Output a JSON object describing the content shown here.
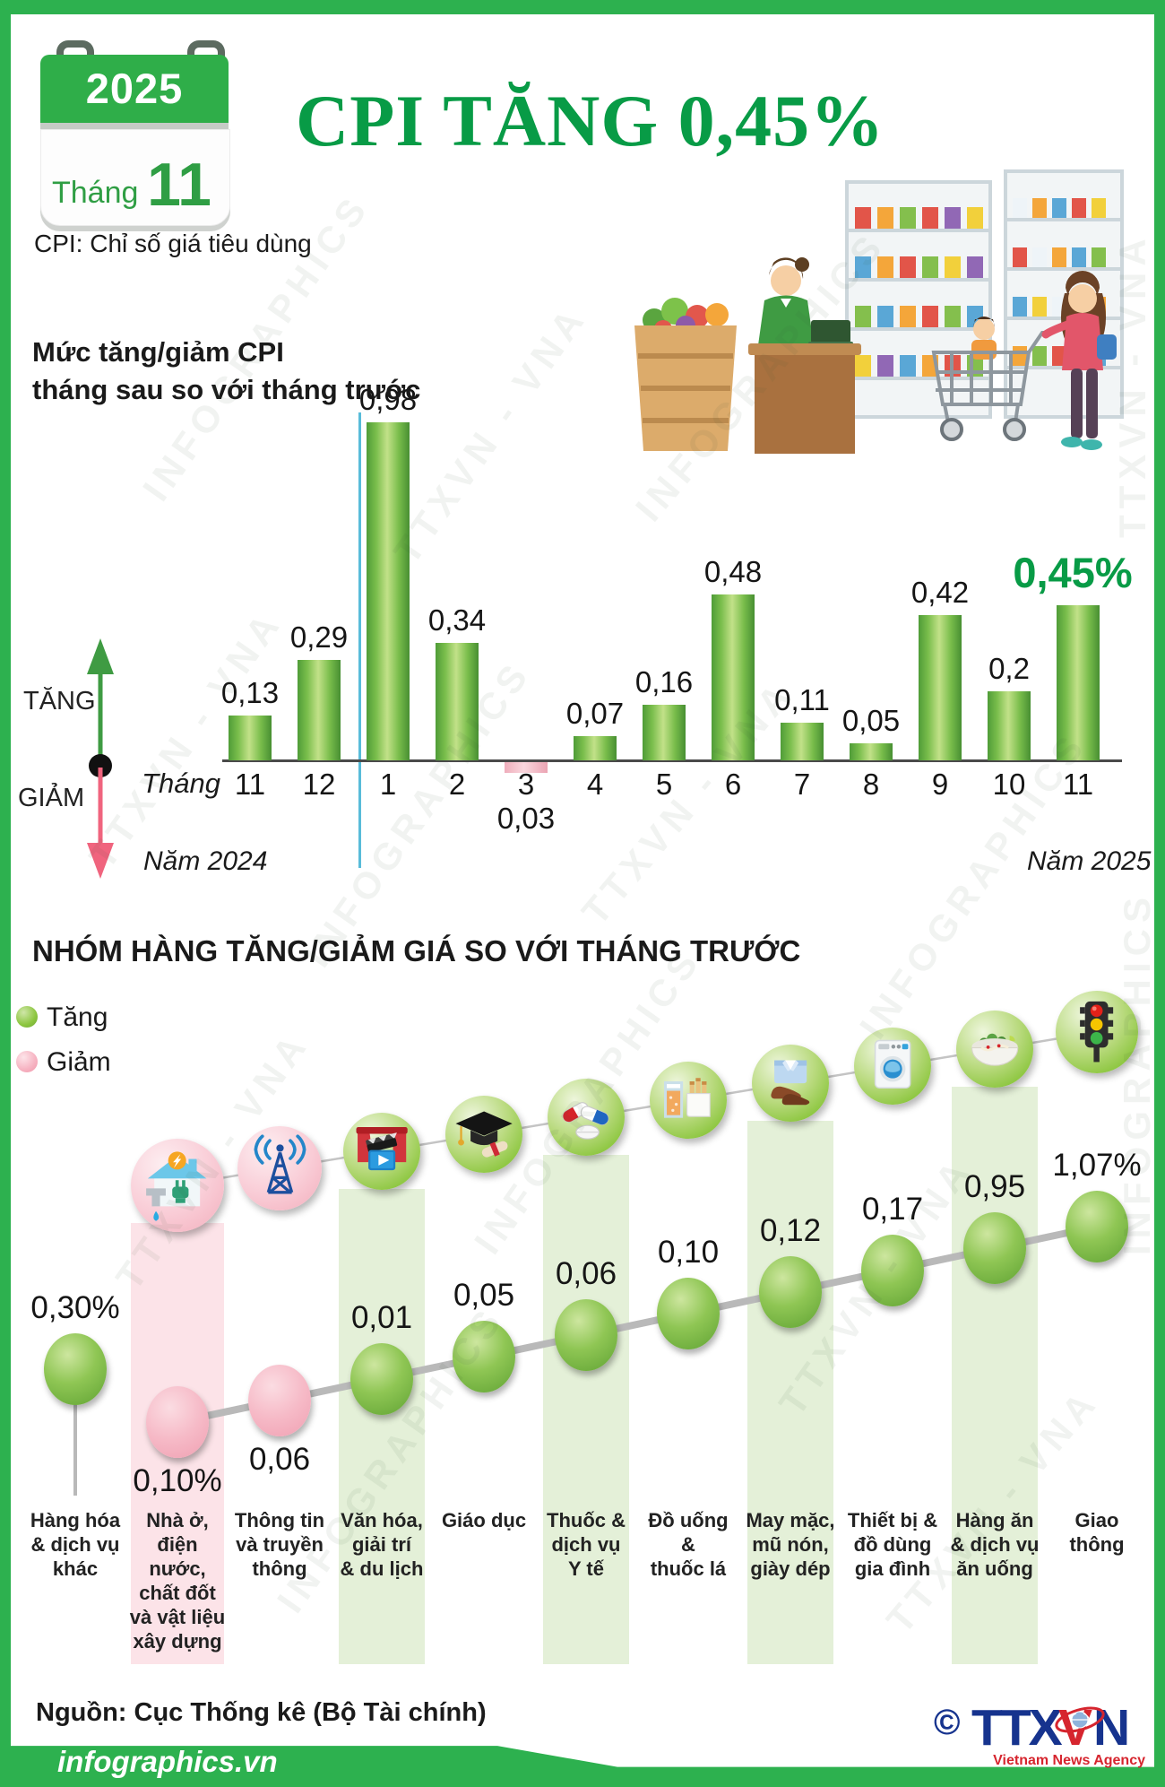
{
  "header": {
    "calendar": {
      "year": "2025",
      "month_label": "Tháng",
      "month": "11"
    },
    "title": "CPI TĂNG 0,45%",
    "subtitle": "CPI: Chỉ số giá tiêu dùng"
  },
  "chart1": {
    "title_lines": [
      "Mức tăng/giảm CPI",
      "tháng sau so với tháng trước"
    ],
    "axis_prefix": "Tháng",
    "up_label": "TĂNG",
    "down_label": "GIẢM",
    "year_left": "Năm 2024",
    "year_right": "Năm 2025"
  },
  "section2": {
    "title": "NHÓM HÀNG TĂNG/GIẢM GIÁ SO VỚI THÁNG TRƯỚC",
    "legend": [
      {
        "label": "Tăng"
      },
      {
        "label": "Giảm"
      }
    ]
  },
  "footer": {
    "source": "Nguồn: Cục Thống kê (Bộ Tài chính)",
    "brand": "infographics.vn",
    "copyright": "©",
    "agency_parts": [
      "TTX",
      "V",
      "N"
    ],
    "agency_sub": "Vietnam News Agency"
  },
  "watermarks": [
    "INFOGRAPHICS",
    "TTXVN - VNA"
  ],
  "colors": {
    "accent_green": "#089b46",
    "bar_up": "#6cb33f",
    "bar_down": "#f5b8c4",
    "bubble_up": "#76b043",
    "bubble_down": "#f4a7b9",
    "divider_blue": "#58bcd9"
  },
  "chart_data": [
    {
      "type": "bar",
      "title": "Mức tăng/giảm CPI tháng sau so với tháng trước (%)",
      "categories": [
        "11",
        "12",
        "1",
        "2",
        "3",
        "4",
        "5",
        "6",
        "7",
        "8",
        "9",
        "10",
        "11"
      ],
      "values": [
        0.13,
        0.29,
        0.98,
        0.34,
        -0.03,
        0.07,
        0.16,
        0.48,
        0.11,
        0.05,
        0.42,
        0.2,
        0.45
      ],
      "labels": [
        "0,13",
        "0,29",
        "0,98",
        "0,34",
        "0,03",
        "0,07",
        "0,16",
        "0,48",
        "0,11",
        "0,05",
        "0,42",
        "0,2",
        "0,45%"
      ],
      "xlabel": "Tháng",
      "ylabel": "",
      "ylim": [
        -0.1,
        1.1
      ],
      "grid": false,
      "year_groups": [
        {
          "label": "Năm 2024",
          "months": [
            "11",
            "12"
          ]
        },
        {
          "label": "Năm 2025",
          "months": [
            "1",
            "2",
            "3",
            "4",
            "5",
            "6",
            "7",
            "8",
            "9",
            "10",
            "11"
          ]
        }
      ],
      "highlight_last_value": "0,45%"
    },
    {
      "type": "scatter",
      "title": "Nhóm hàng tăng/giảm giá so với tháng trước (%)",
      "categories": [
        "Hàng hóa & dịch vụ khác",
        "Nhà ở, điện nước, chất đốt và vật liệu xây dựng",
        "Thông tin và truyền thông",
        "Văn hóa, giải trí & du lịch",
        "Giáo dục",
        "Thuốc & dịch vụ Y tế",
        "Đồ uống & thuốc lá",
        "May mặc, mũ nón, giày dép",
        "Thiết bị & đồ dùng gia đình",
        "Hàng ăn & dịch vụ ăn uống",
        "Giao thông"
      ],
      "values": [
        0.3,
        -0.1,
        -0.06,
        0.01,
        0.05,
        0.06,
        0.1,
        0.12,
        0.17,
        0.95,
        1.07
      ],
      "labels": [
        "0,30%",
        "0,10%",
        "0,06",
        "0,01",
        "0,05",
        "0,06",
        "0,10",
        "0,12",
        "0,17",
        "0,95",
        "1,07%"
      ],
      "directions": [
        "up",
        "down",
        "down",
        "up",
        "up",
        "up",
        "up",
        "up",
        "up",
        "up",
        "up"
      ],
      "icons": [
        null,
        "house-utilities-icon",
        "broadcast-tower-icon",
        "cinema-icon",
        "graduation-cap-icon",
        "medicine-icon",
        "beverage-tobacco-icon",
        "clothing-shoes-icon",
        "washing-machine-icon",
        "food-bowl-icon",
        "traffic-light-icon"
      ],
      "label_lines": [
        [
          "Hàng hóa",
          "& dịch vụ",
          "khác"
        ],
        [
          "Nhà ở,",
          "điện",
          "nước,",
          "chất đốt",
          "và vật liệu",
          "xây dựng"
        ],
        [
          "Thông tin",
          "và truyền",
          "thông"
        ],
        [
          "Văn hóa,",
          "giải trí",
          "& du lịch"
        ],
        [
          "Giáo dục"
        ],
        [
          "Thuốc &",
          "dịch vụ",
          "Y tế"
        ],
        [
          "Đồ uống",
          "&",
          "thuốc lá"
        ],
        [
          "May mặc,",
          "mũ nón,",
          "giày dép"
        ],
        [
          "Thiết bị &",
          "đồ dùng",
          "gia đình"
        ],
        [
          "Hàng ăn",
          "& dịch vụ",
          "ăn uống"
        ],
        [
          "Giao",
          "thông"
        ]
      ]
    }
  ]
}
